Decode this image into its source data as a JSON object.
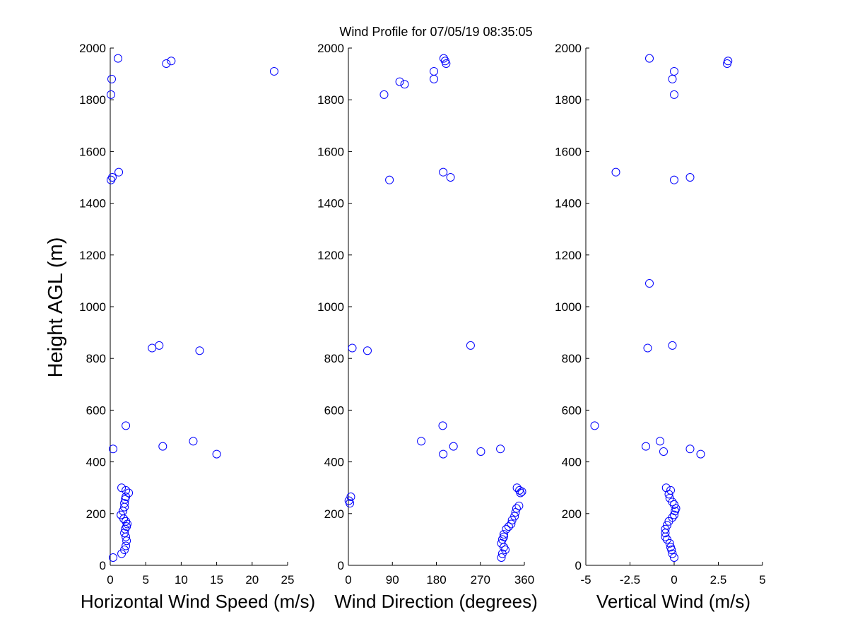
{
  "chart_data": {
    "title": "Wind Profile for  07/05/19 08:35:05",
    "type": "scatter",
    "marker_color": "#0000ff",
    "ylabel": "Height AGL (m)",
    "ylim": [
      0,
      2000
    ],
    "yticks": [
      0,
      200,
      400,
      600,
      800,
      1000,
      1200,
      1400,
      1600,
      1800,
      2000
    ],
    "panels": [
      {
        "xlabel": "Horizontal Wind Speed (m/s)",
        "xlim": [
          0,
          25
        ],
        "xticks": [
          0,
          5,
          10,
          15,
          20,
          25
        ],
        "xtick_labels": [
          "0",
          "5",
          "10",
          "15",
          "20",
          "25"
        ],
        "x": [
          0.4,
          1.6,
          2.0,
          2.2,
          2.3,
          2.2,
          2.0,
          2.1,
          2.3,
          2.4,
          2.2,
          1.9,
          1.5,
          1.8,
          2.0,
          2.0,
          2.1,
          2.2,
          2.6,
          1.6,
          2.2,
          0.4,
          7.4,
          11.7,
          15.0,
          2.2,
          12.6,
          5.9,
          6.9,
          0.1,
          0.3,
          1.2,
          0.1,
          0.2,
          23.1,
          7.9,
          8.6,
          1.1
        ],
        "y": [
          30,
          45,
          60,
          75,
          95,
          110,
          125,
          140,
          150,
          160,
          170,
          180,
          195,
          210,
          225,
          240,
          255,
          265,
          280,
          300,
          290,
          450,
          460,
          480,
          430,
          540,
          830,
          840,
          850,
          1490,
          1500,
          1520,
          1820,
          1880,
          1910,
          1940,
          1950,
          1960
        ]
      },
      {
        "xlabel": "Wind Direction (degrees)",
        "xlim": [
          0,
          360
        ],
        "xticks": [
          0,
          90,
          180,
          270,
          360
        ],
        "xtick_labels": [
          "0",
          "90",
          "180",
          "270",
          "360"
        ],
        "x": [
          313,
          315,
          321,
          318,
          313,
          315,
          318,
          318,
          323,
          328,
          333,
          335,
          340,
          342,
          344,
          349,
          352,
          350,
          355,
          345,
          3,
          1,
          5,
          311,
          271,
          215,
          194,
          149,
          193,
          250,
          8,
          39,
          84,
          194,
          209,
          73,
          105,
          115,
          175,
          175,
          200,
          198,
          195
        ],
        "y": [
          30,
          45,
          60,
          70,
          85,
          100,
          110,
          120,
          140,
          150,
          160,
          175,
          190,
          205,
          220,
          230,
          280,
          290,
          285,
          300,
          240,
          250,
          265,
          450,
          440,
          460,
          430,
          480,
          540,
          850,
          840,
          830,
          1490,
          1520,
          1500,
          1820,
          1870,
          1860,
          1880,
          1910,
          1940,
          1950,
          1960
        ]
      },
      {
        "xlabel": "Vertical Wind (m/s)",
        "xlim": [
          -5,
          5
        ],
        "xticks": [
          -5,
          -2.5,
          0,
          2.5,
          5
        ],
        "xtick_labels": [
          "-5",
          "-2.5",
          "0",
          "2.5",
          "5"
        ],
        "x": [
          0.0,
          -0.1,
          -0.15,
          -0.2,
          -0.25,
          -0.4,
          -0.5,
          -0.5,
          -0.5,
          -0.4,
          -0.3,
          -0.1,
          0.0,
          0.05,
          0.1,
          0.0,
          -0.1,
          -0.25,
          -0.3,
          -0.2,
          -0.45,
          -0.8,
          -1.6,
          0.9,
          -0.6,
          1.5,
          -4.5,
          -1.5,
          -0.1,
          -1.4,
          -3.3,
          0.0,
          0.9,
          0.0,
          -0.1,
          0.0,
          3.0,
          3.05,
          -1.4
        ],
        "y": [
          30,
          45,
          60,
          70,
          85,
          100,
          110,
          125,
          140,
          155,
          170,
          185,
          195,
          210,
          220,
          235,
          245,
          260,
          275,
          290,
          300,
          480,
          460,
          450,
          440,
          430,
          540,
          840,
          850,
          1090,
          1520,
          1490,
          1500,
          1820,
          1880,
          1910,
          1940,
          1950,
          1960
        ]
      }
    ]
  }
}
